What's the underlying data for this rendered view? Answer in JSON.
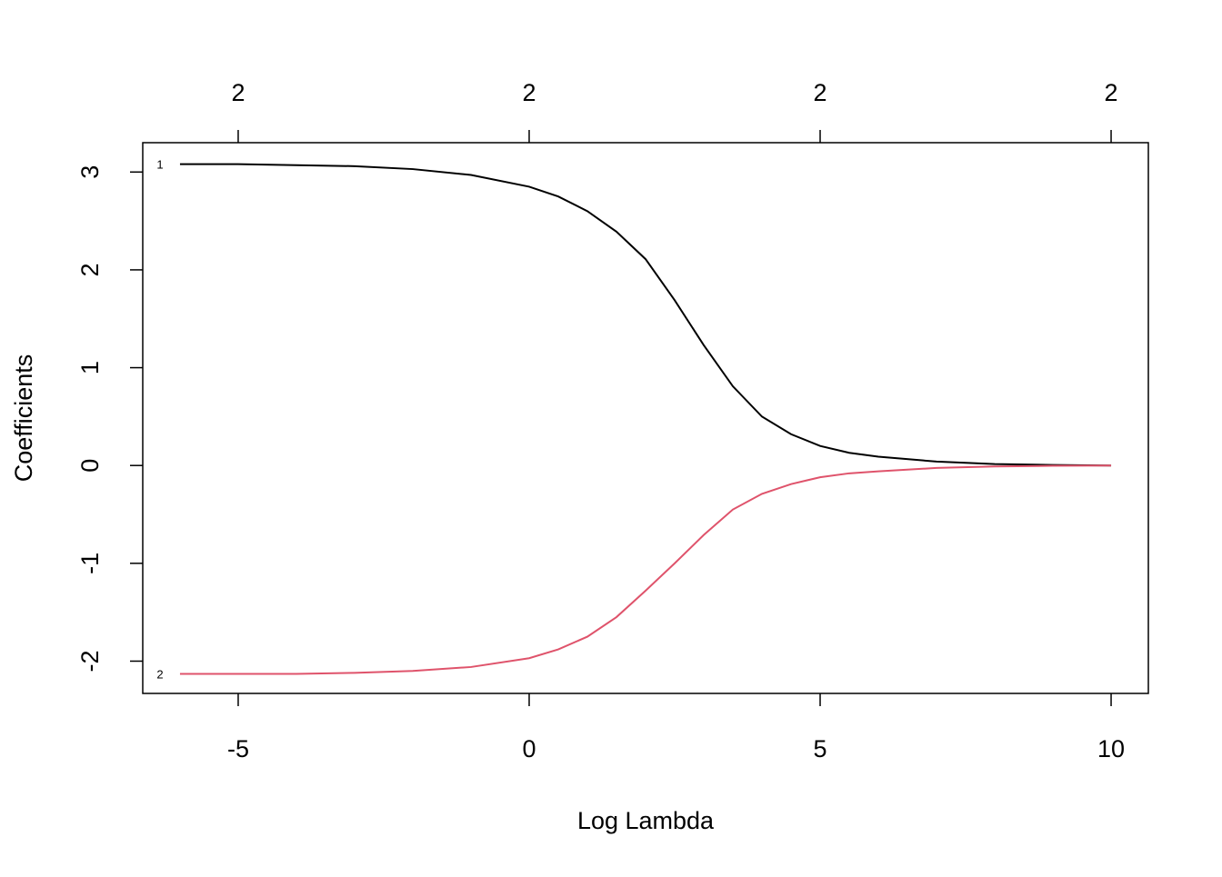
{
  "chart_data": {
    "type": "line",
    "x_label": "Log Lambda",
    "y_label": "Coefficients",
    "x": [
      -6,
      -5,
      -4,
      -3,
      -2,
      -1,
      0,
      0.5,
      1,
      1.5,
      2,
      2.5,
      3,
      3.5,
      4,
      4.5,
      5,
      5.5,
      6,
      7,
      8,
      9,
      10
    ],
    "series": [
      {
        "name": "1",
        "color": "#000000",
        "values": [
          3.08,
          3.08,
          3.07,
          3.06,
          3.03,
          2.97,
          2.85,
          2.75,
          2.6,
          2.39,
          2.11,
          1.69,
          1.23,
          0.81,
          0.5,
          0.32,
          0.2,
          0.13,
          0.09,
          0.04,
          0.015,
          0.005,
          0
        ]
      },
      {
        "name": "2",
        "color": "#DF536B",
        "values": [
          -2.13,
          -2.13,
          -2.13,
          -2.12,
          -2.1,
          -2.06,
          -1.97,
          -1.88,
          -1.75,
          -1.55,
          -1.28,
          -1.0,
          -0.71,
          -0.45,
          -0.29,
          -0.19,
          -0.12,
          -0.08,
          -0.06,
          -0.025,
          -0.01,
          -0.003,
          0
        ]
      }
    ],
    "xlim": [
      -6.64,
      10.64
    ],
    "ylim": [
      -2.33,
      3.3
    ],
    "xticks": [
      -5,
      0,
      5,
      10
    ],
    "yticks": [
      -2,
      -1,
      0,
      1,
      2,
      3
    ],
    "top_ticks": [
      {
        "value": -5,
        "label": "2"
      },
      {
        "value": 0,
        "label": "2"
      },
      {
        "value": 5,
        "label": "2"
      },
      {
        "value": 10,
        "label": "2"
      }
    ]
  }
}
